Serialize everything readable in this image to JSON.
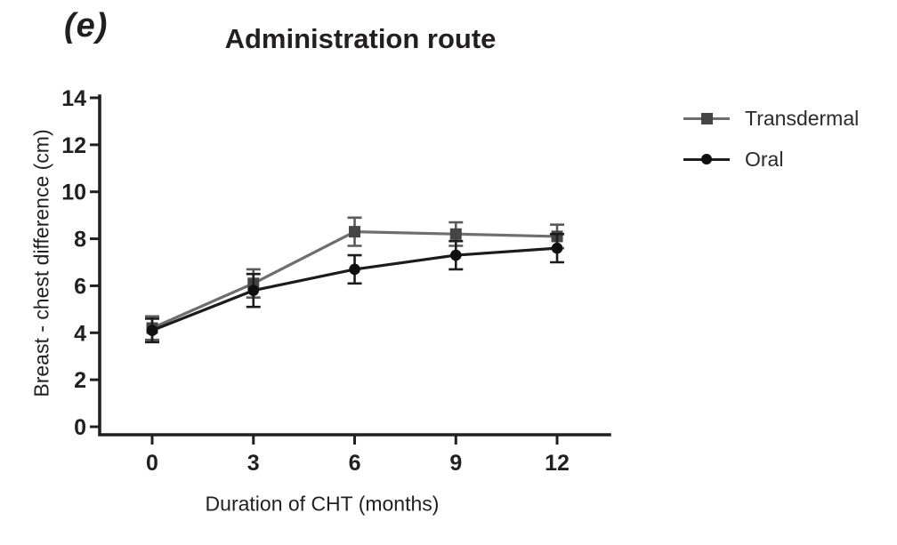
{
  "figure": {
    "background": "#ffffff",
    "text_color": "#231f20"
  },
  "chart_data": {
    "type": "line",
    "panel_label": "(e)",
    "title": "Administration route",
    "xlabel": "Duration of CHT (months)",
    "ylabel": "Breast - chest difference (cm)",
    "x": [
      0,
      3,
      6,
      9,
      12
    ],
    "x_tick_labels": [
      "0",
      "3",
      "6",
      "9",
      "12"
    ],
    "y_ticks": [
      0,
      2,
      4,
      6,
      8,
      10,
      12,
      14
    ],
    "ylim": [
      0,
      14
    ],
    "xlim": [
      0,
      12
    ],
    "grid": false,
    "legend_position": "right",
    "axis_color": "#231f20",
    "series": [
      {
        "name": "Transdermal",
        "marker": "square",
        "line_color": "#6e6e6e",
        "marker_color": "#454545",
        "error_color": "#5a5a5a",
        "values": [
          4.2,
          6.1,
          8.3,
          8.2,
          8.1
        ],
        "errors": [
          0.5,
          0.6,
          0.6,
          0.5,
          0.5
        ]
      },
      {
        "name": "Oral",
        "marker": "circle",
        "line_color": "#1c1c1c",
        "marker_color": "#0f0f0f",
        "error_color": "#1c1c1c",
        "values": [
          4.1,
          5.8,
          6.7,
          7.3,
          7.6
        ],
        "errors": [
          0.5,
          0.7,
          0.6,
          0.6,
          0.6
        ]
      }
    ]
  }
}
